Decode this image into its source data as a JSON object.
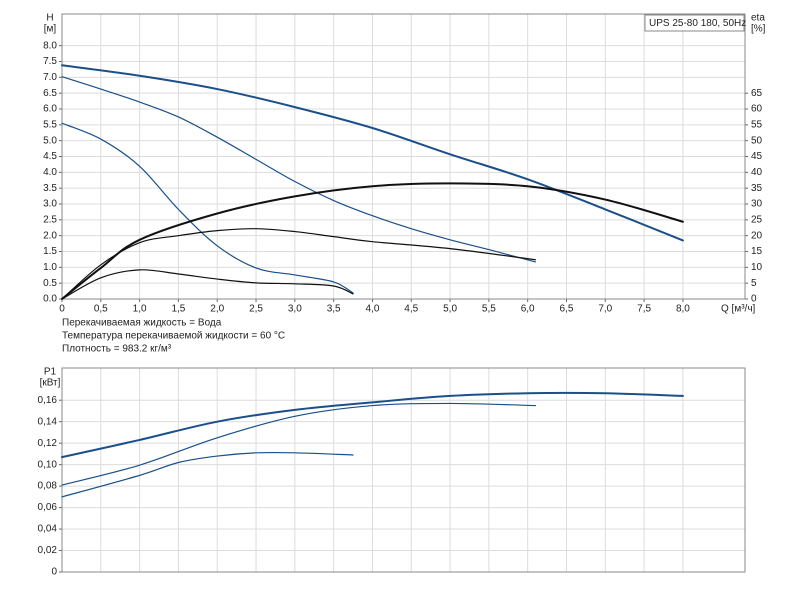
{
  "chart_data": [
    {
      "type": "line",
      "title": "UPS 25-80 180, 50Hz",
      "ylabel": "H",
      "yunit": "[м]",
      "y2label": "eta",
      "y2unit": "[%]",
      "xlabel": "Q [м³/ч]",
      "notes": [
        "Перекачиваемая жидкость = Вода",
        "Температура перекачиваемой жидкости = 60 °C",
        "Плотность = 983.2 кг/м³"
      ],
      "xlim": [
        0,
        8.8
      ],
      "xticks": [
        0,
        {
          "value": 0.5,
          "label": "0,5"
        },
        {
          "value": 1,
          "label": "1,0"
        },
        {
          "value": 1.5,
          "label": "1,5"
        },
        {
          "value": 2,
          "label": "2,0"
        },
        {
          "value": 2.5,
          "label": "2,5"
        },
        {
          "value": 3,
          "label": "3,0"
        },
        {
          "value": 3.5,
          "label": "3,5"
        },
        {
          "value": 4,
          "label": "4,0"
        },
        {
          "value": 4.5,
          "label": "4,5"
        },
        {
          "value": 5,
          "label": "5,0"
        },
        {
          "value": 5.5,
          "label": "5,5"
        },
        {
          "value": 6,
          "label": "6,0"
        },
        {
          "value": 6.5,
          "label": "6,5"
        },
        {
          "value": 7,
          "label": "7,0"
        },
        {
          "value": 7.5,
          "label": "7,5"
        },
        {
          "value": 8,
          "label": "8,0"
        }
      ],
      "ylim": [
        0,
        9
      ],
      "yticks": [
        {
          "value": 0,
          "label": "0.0"
        },
        0.5,
        {
          "value": 1,
          "label": "1.0"
        },
        1.5,
        {
          "value": 2,
          "label": "2.0"
        },
        2.5,
        {
          "value": 3,
          "label": "3.0"
        },
        3.5,
        {
          "value": 4,
          "label": "4.0"
        },
        4.5,
        {
          "value": 5,
          "label": "5.0"
        },
        5.5,
        {
          "value": 6,
          "label": "6.0"
        },
        6.5,
        {
          "value": 7,
          "label": "7.0"
        },
        7.5,
        {
          "value": 8,
          "label": "8.0"
        }
      ],
      "y2lim": [
        0,
        90
      ],
      "y2ticks": [
        0,
        5,
        10,
        15,
        20,
        25,
        30,
        35,
        40,
        45,
        50,
        55,
        60,
        65
      ],
      "grid": true,
      "series": [
        {
          "color": "#1a4f8b",
          "width": 2,
          "x": [
            0,
            1,
            2,
            3,
            4,
            5,
            6,
            7,
            8
          ],
          "values": [
            7.38,
            7.05,
            6.63,
            6.06,
            5.4,
            4.57,
            3.78,
            2.83,
            1.85
          ]
        },
        {
          "color": "#1a4f8b",
          "width": 1.2,
          "x": [
            0,
            0.5,
            1,
            1.5,
            2,
            2.5,
            3,
            3.5,
            4,
            4.5,
            5,
            5.5,
            6.1
          ],
          "values": [
            7.02,
            6.63,
            6.22,
            5.75,
            5.11,
            4.41,
            3.71,
            3.11,
            2.63,
            2.22,
            1.87,
            1.56,
            1.17
          ]
        },
        {
          "color": "#1a4f8b",
          "width": 1.2,
          "x": [
            0,
            0.5,
            1,
            1.5,
            2,
            2.5,
            3,
            3.5,
            3.75
          ],
          "values": [
            5.55,
            5.05,
            4.19,
            2.83,
            1.68,
            0.98,
            0.76,
            0.54,
            0.19
          ]
        },
        {
          "color": "#111111",
          "width": 2,
          "axis": "y2",
          "x": [
            0,
            0.5,
            1,
            2,
            3,
            4,
            5,
            6,
            7,
            8
          ],
          "values": [
            0,
            9.8,
            18.7,
            27,
            32.4,
            35.6,
            36.5,
            35.6,
            31.4,
            24.4
          ]
        },
        {
          "color": "#111111",
          "width": 1.2,
          "axis": "y2",
          "x": [
            0,
            0.5,
            1,
            1.5,
            2,
            2.5,
            3,
            3.5,
            4,
            5,
            6.1
          ],
          "values": [
            0,
            10.8,
            17.8,
            20,
            21.6,
            22.2,
            21.3,
            19.7,
            18.1,
            15.9,
            12.4
          ]
        },
        {
          "color": "#111111",
          "width": 1.2,
          "axis": "y2",
          "x": [
            0,
            0.5,
            1,
            1.5,
            2,
            2.5,
            3,
            3.5,
            3.75
          ],
          "values": [
            0,
            6.7,
            9.2,
            7.9,
            6.3,
            5.1,
            4.8,
            4.1,
            1.6
          ]
        }
      ]
    },
    {
      "type": "line",
      "ylabel": "P1",
      "yunit": "[кВт]",
      "xlim": [
        0,
        8.8
      ],
      "ylim": [
        0,
        0.19
      ],
      "yticks": [
        0,
        {
          "value": 0.02,
          "label": "0,02"
        },
        {
          "value": 0.04,
          "label": "0,04"
        },
        {
          "value": 0.06,
          "label": "0,06"
        },
        {
          "value": 0.08,
          "label": "0,08"
        },
        {
          "value": 0.1,
          "label": "0,10"
        },
        {
          "value": 0.12,
          "label": "0,12"
        },
        {
          "value": 0.14,
          "label": "0,14"
        },
        {
          "value": 0.16,
          "label": "0,16"
        }
      ],
      "grid": true,
      "series": [
        {
          "color": "#1a4f8b",
          "width": 2,
          "x": [
            0,
            1,
            2,
            3,
            4,
            5,
            6,
            7,
            8
          ],
          "values": [
            0.107,
            0.123,
            0.14,
            0.151,
            0.158,
            0.164,
            0.1665,
            0.1665,
            0.164
          ]
        },
        {
          "color": "#1a4f8b",
          "width": 1.2,
          "x": [
            0,
            1,
            2,
            3,
            4,
            5,
            6.1
          ],
          "values": [
            0.081,
            0.0995,
            0.125,
            0.145,
            0.155,
            0.157,
            0.155
          ]
        },
        {
          "color": "#1a4f8b",
          "width": 1.2,
          "x": [
            0,
            1,
            1.5,
            2,
            2.5,
            3,
            3.75
          ],
          "values": [
            0.07,
            0.09,
            0.102,
            0.108,
            0.111,
            0.111,
            0.109
          ]
        }
      ]
    }
  ]
}
